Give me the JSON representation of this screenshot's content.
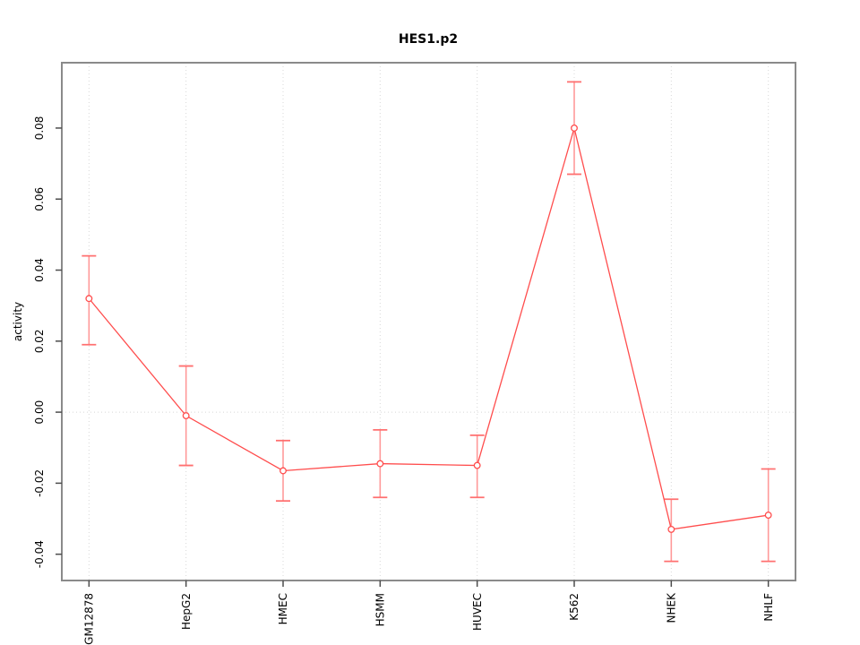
{
  "chart_data": {
    "type": "line",
    "title": "HES1.p2",
    "xlabel": "",
    "ylabel": "activity",
    "categories": [
      "GM12878",
      "HepG2",
      "HMEC",
      "HSMM",
      "HUVEC",
      "K562",
      "NHEK",
      "NHLF"
    ],
    "series": [
      {
        "name": "activity",
        "values": [
          0.032,
          -0.001,
          -0.0165,
          -0.0145,
          -0.015,
          0.08,
          -0.033,
          -0.029
        ],
        "error_upper": [
          0.044,
          0.013,
          -0.008,
          -0.005,
          -0.0065,
          0.093,
          -0.0245,
          -0.016
        ],
        "error_lower": [
          0.019,
          -0.015,
          -0.025,
          -0.024,
          -0.024,
          0.067,
          -0.042,
          -0.042
        ]
      }
    ],
    "y_ticks": [
      -0.04,
      -0.02,
      0.0,
      0.02,
      0.04,
      0.06,
      0.08
    ],
    "ylim": [
      -0.0474,
      0.0984
    ],
    "xlim": [
      0.72,
      8.28
    ],
    "grid": {
      "vertical_at_categories": true,
      "horizontal_at_zero": true,
      "style": "dotted"
    },
    "legend_position": "none",
    "colors": {
      "line": "#ff4d4d",
      "whisker": "#ff9999",
      "cap": "#ff7070",
      "marker_stroke": "#ff4d4d",
      "marker_fill": "#ffffff",
      "grid": "#d8d8d8",
      "box": "#8a8a8a",
      "tick": "#4d4d4d"
    },
    "layout": {
      "plot_left": 69,
      "plot_top": 70,
      "plot_right": 888,
      "plot_bottom": 648,
      "tick_length": 7,
      "marker_radius": 3.3,
      "cap_half_width": 8
    }
  }
}
